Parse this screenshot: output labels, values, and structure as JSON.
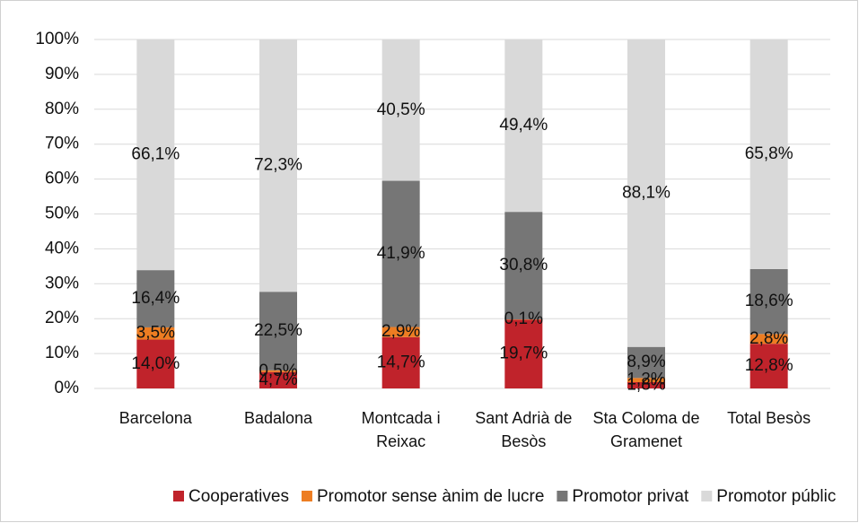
{
  "chart_data": {
    "type": "stacked_bar",
    "categories": [
      "Barcelona",
      "Badalona",
      "Montcada i Reixac",
      "Sant Adrià de Besòs",
      "Sta Coloma de Gramenet",
      "Total Besòs"
    ],
    "series": [
      {
        "name": "Cooperatives",
        "color": "#c0232b",
        "values": [
          14.0,
          4.7,
          14.7,
          19.7,
          1.8,
          12.8
        ],
        "value_labels": [
          "14,0%",
          "4,7%",
          "14,7%",
          "19,7%",
          "1,8%",
          "12,8%"
        ]
      },
      {
        "name": "Promotor sense ànim de lucre",
        "color": "#ed7d22",
        "values": [
          3.5,
          0.5,
          2.9,
          0.1,
          1.2,
          2.8
        ],
        "value_labels": [
          "3,5%",
          "0,5%",
          "2,9%",
          "0,1%",
          "1,2%",
          "2,8%"
        ]
      },
      {
        "name": "Promotor privat",
        "color": "#767676",
        "values": [
          16.4,
          22.5,
          41.9,
          30.8,
          8.9,
          18.6
        ],
        "value_labels": [
          "16,4%",
          "22,5%",
          "41,9%",
          "30,8%",
          "8,9%",
          "18,6%"
        ]
      },
      {
        "name": "Promotor públic",
        "color": "#d9d9d9",
        "values": [
          66.1,
          72.3,
          40.5,
          49.4,
          88.1,
          65.8
        ],
        "value_labels": [
          "66,1%",
          "72,3%",
          "40,5%",
          "49,4%",
          "88,1%",
          "65,8%"
        ]
      }
    ],
    "ylim": [
      0,
      100
    ],
    "yticks": [
      {
        "value": 0,
        "label": "0%"
      },
      {
        "value": 10,
        "label": "10%"
      },
      {
        "value": 20,
        "label": "20%"
      },
      {
        "value": 30,
        "label": "30%"
      },
      {
        "value": 40,
        "label": "40%"
      },
      {
        "value": 50,
        "label": "50%"
      },
      {
        "value": 60,
        "label": "60%"
      },
      {
        "value": 70,
        "label": "70%"
      },
      {
        "value": 80,
        "label": "80%"
      },
      {
        "value": 90,
        "label": "90%"
      },
      {
        "value": 100,
        "label": "100%"
      }
    ],
    "grid": true,
    "legend": "bottom"
  }
}
